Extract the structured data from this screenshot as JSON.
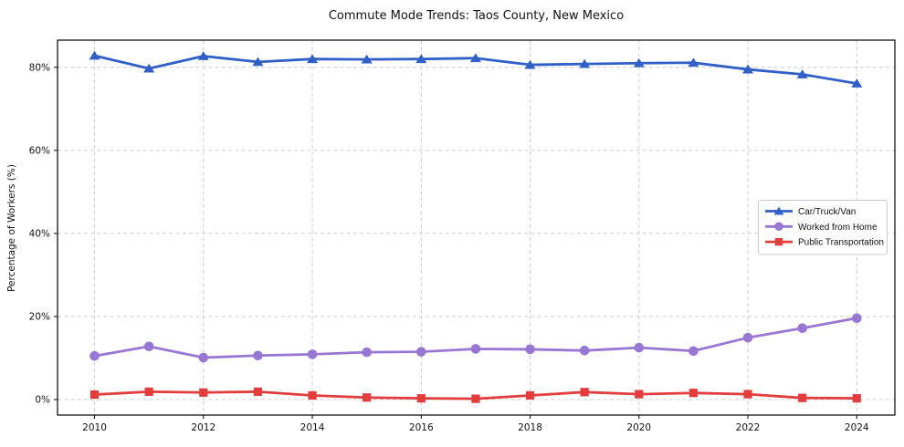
{
  "chart_data": {
    "type": "line",
    "title": "Commute Mode Trends: Taos County, New Mexico",
    "xlabel": "",
    "ylabel": "Percentage of Workers (%)",
    "x": [
      2010,
      2011,
      2012,
      2013,
      2014,
      2015,
      2016,
      2017,
      2018,
      2019,
      2020,
      2021,
      2022,
      2023,
      2024
    ],
    "x_ticks": [
      2010,
      2012,
      2014,
      2016,
      2018,
      2020,
      2022,
      2024
    ],
    "x_tick_labels": [
      "2010",
      "2012",
      "2014",
      "2016",
      "2018",
      "2020",
      "2022",
      "2024"
    ],
    "y_ticks": [
      0,
      20,
      40,
      60,
      80
    ],
    "y_tick_labels": [
      "0%",
      "20%",
      "40%",
      "60%",
      "80%"
    ],
    "xlim": [
      2009.32,
      2024.7
    ],
    "ylim": [
      -3.73,
      86.54
    ],
    "grid": {
      "visible": true,
      "style": "dashed",
      "color": "#cccccc"
    },
    "legend": {
      "position": "center-right",
      "border_color": "#cccccc",
      "background": "#ffffff"
    },
    "series": [
      {
        "name": "Car/Truck/Van",
        "color": "#2f5fc7",
        "marker": "triangle",
        "values": [
          82.8,
          79.7,
          82.7,
          81.3,
          82.0,
          81.9,
          82.0,
          82.2,
          80.6,
          80.8,
          81.0,
          81.1,
          79.5,
          78.3,
          76.1
        ]
      },
      {
        "name": "Worked from Home",
        "color": "#9876d4",
        "marker": "circle",
        "values": [
          10.5,
          12.8,
          10.1,
          10.6,
          10.9,
          11.4,
          11.5,
          12.2,
          12.1,
          11.8,
          12.5,
          11.7,
          14.9,
          17.2,
          19.6
        ]
      },
      {
        "name": "Public Transportation",
        "color": "#e23c3c",
        "marker": "square",
        "values": [
          1.2,
          1.9,
          1.7,
          1.9,
          1.0,
          0.5,
          0.3,
          0.2,
          1.0,
          1.8,
          1.3,
          1.6,
          1.3,
          0.4,
          0.3
        ]
      }
    ]
  }
}
